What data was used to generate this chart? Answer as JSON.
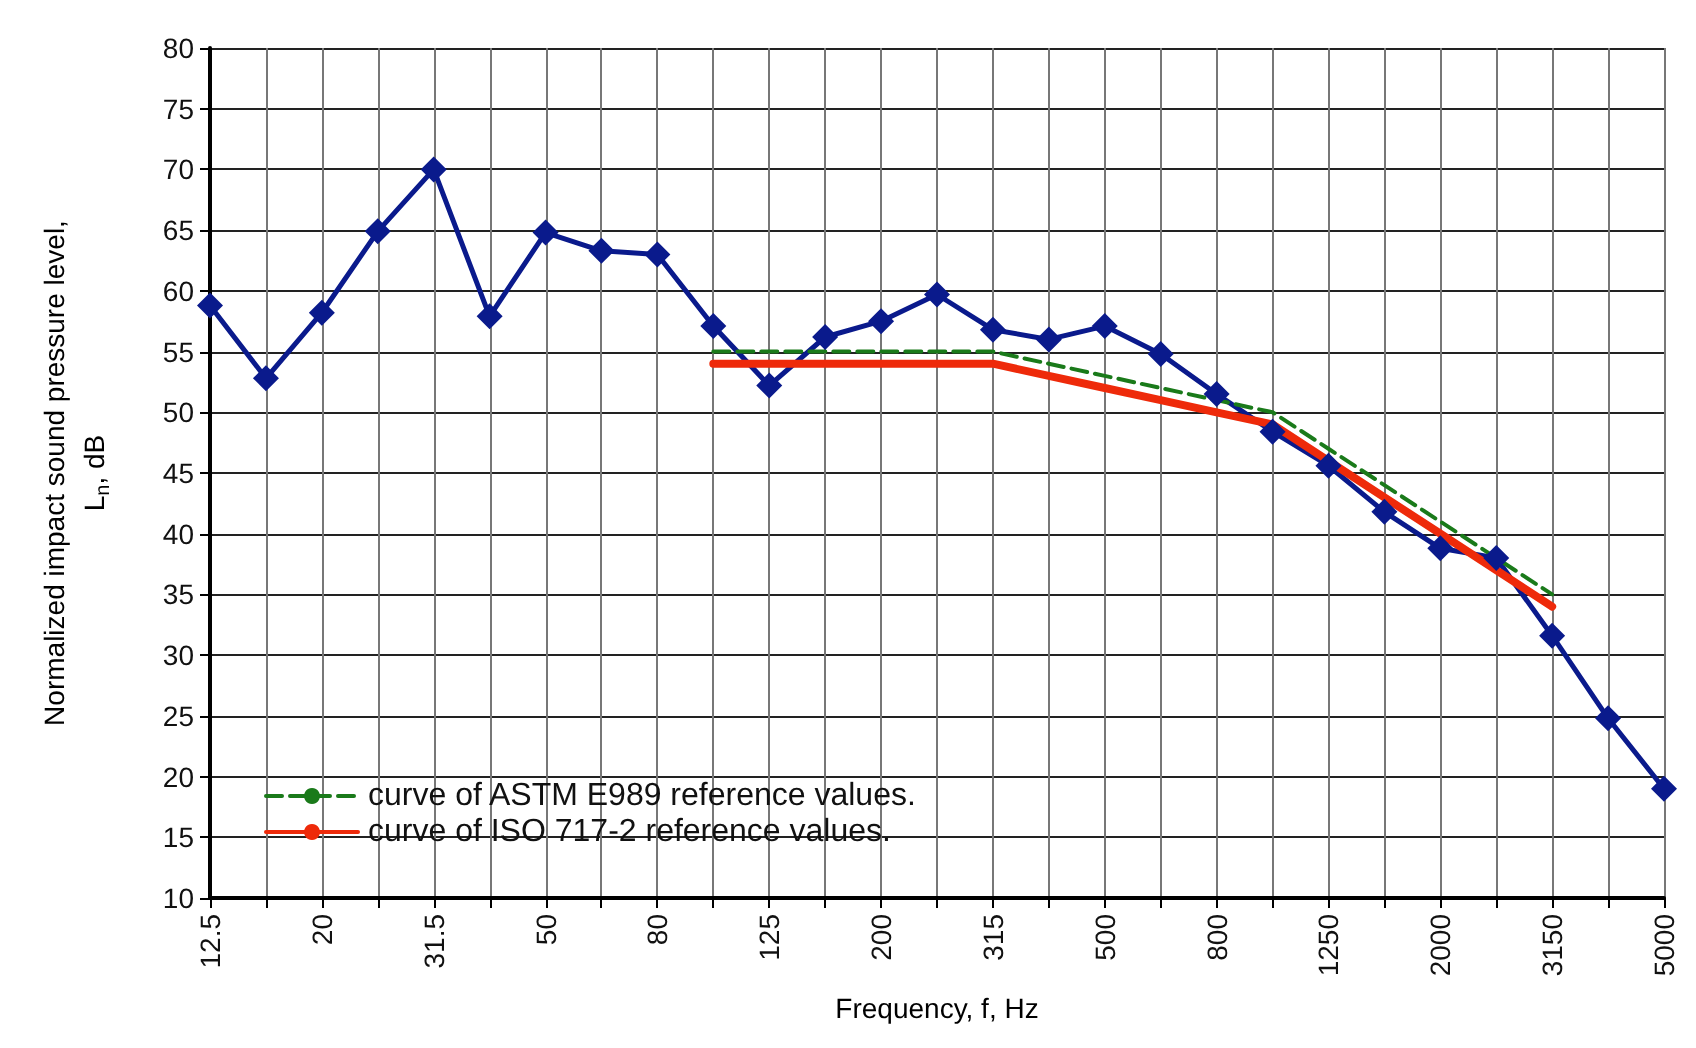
{
  "chart_data": {
    "type": "line",
    "xlabel": "Frequency, f, Hz",
    "ylabel": "Normalized impact sound pressure level,\nL$_{n}$, dB",
    "categories": [
      "12.5",
      null,
      "20",
      null,
      "31.5",
      null,
      "50",
      null,
      "80",
      null,
      "125",
      null,
      "200",
      null,
      "315",
      null,
      "500",
      null,
      "800",
      null,
      "1250",
      null,
      "2000",
      null,
      "3150",
      null,
      "5000"
    ],
    "series": [
      {
        "color": "#0a1a8c",
        "marker": "diamond",
        "values": [
          58.8,
          52.8,
          58.2,
          64.9,
          70,
          57.9,
          64.8,
          63.3,
          63,
          57.1,
          52.2,
          56.2,
          57.5,
          59.7,
          56.8,
          56,
          57.1,
          54.8,
          51.5,
          48.4,
          45.6,
          41.8,
          38.8,
          38,
          31.6,
          24.8,
          19
        ]
      },
      {
        "name": "curve of ASTM E989 reference values.",
        "color": "#1a7a1a",
        "marker": "none",
        "line_style": "dashed",
        "values": [
          null,
          null,
          null,
          null,
          null,
          null,
          null,
          null,
          null,
          55,
          55,
          55,
          55,
          55,
          55,
          54,
          53,
          52,
          51,
          50,
          47,
          44,
          41,
          38,
          35,
          null,
          null
        ]
      },
      {
        "name": "curve of ISO 717-2 reference values.",
        "color": "#ee2a0a",
        "marker": "none",
        "line_style": "solid",
        "values": [
          null,
          null,
          null,
          null,
          null,
          null,
          null,
          null,
          null,
          54,
          54,
          54,
          54,
          54,
          54,
          53,
          52,
          51,
          50,
          49,
          46,
          43,
          40,
          37,
          34,
          null,
          null
        ]
      }
    ],
    "ylim": [
      10,
      80
    ],
    "yticks": [
      10,
      15,
      20,
      25,
      30,
      35,
      40,
      45,
      50,
      55,
      60,
      65,
      70,
      75,
      80
    ],
    "grid": true,
    "legend": "bottom left"
  }
}
